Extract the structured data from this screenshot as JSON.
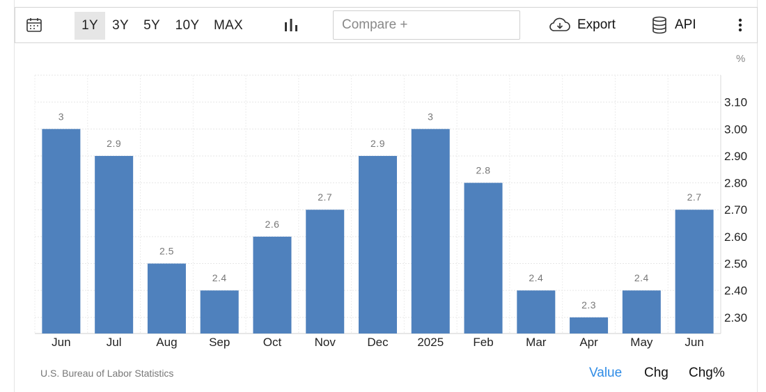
{
  "toolbar": {
    "calendar_icon": "calendar-icon",
    "ranges": [
      {
        "label": "1Y",
        "active": true
      },
      {
        "label": "3Y",
        "active": false
      },
      {
        "label": "5Y",
        "active": false
      },
      {
        "label": "10Y",
        "active": false
      },
      {
        "label": "MAX",
        "active": false
      }
    ],
    "chart_type_icon": "bar-chart-icon",
    "compare_placeholder": "Compare +",
    "export_label": "Export",
    "export_icon": "cloud-download-icon",
    "api_label": "API",
    "api_icon": "database-icon",
    "more_icon": "more-vertical-icon"
  },
  "chart_data": {
    "type": "bar",
    "unit": "%",
    "categories": [
      "Jun",
      "Jul",
      "Aug",
      "Sep",
      "Oct",
      "Nov",
      "Dec",
      "2025",
      "Feb",
      "Mar",
      "Apr",
      "May",
      "Jun"
    ],
    "values": [
      3.0,
      2.9,
      2.5,
      2.4,
      2.6,
      2.7,
      2.9,
      3.0,
      2.8,
      2.4,
      2.3,
      2.4,
      2.7
    ],
    "data_labels": [
      "3",
      "2.9",
      "2.5",
      "2.4",
      "2.6",
      "2.7",
      "2.9",
      "3",
      "2.8",
      "2.4",
      "2.3",
      "2.4",
      "2.7"
    ],
    "y_ticks": [
      "2.30",
      "2.40",
      "2.50",
      "2.60",
      "2.70",
      "2.80",
      "2.90",
      "3.00",
      "3.10"
    ],
    "ylim": [
      2.24,
      3.2
    ],
    "y_axis_side": "right",
    "grid": true,
    "bar_color": "#4f81bd"
  },
  "footer": {
    "source": "U.S. Bureau of Labor Statistics",
    "tabs": [
      {
        "label": "Value",
        "active": true
      },
      {
        "label": "Chg",
        "active": false
      },
      {
        "label": "Chg%",
        "active": false
      }
    ]
  }
}
